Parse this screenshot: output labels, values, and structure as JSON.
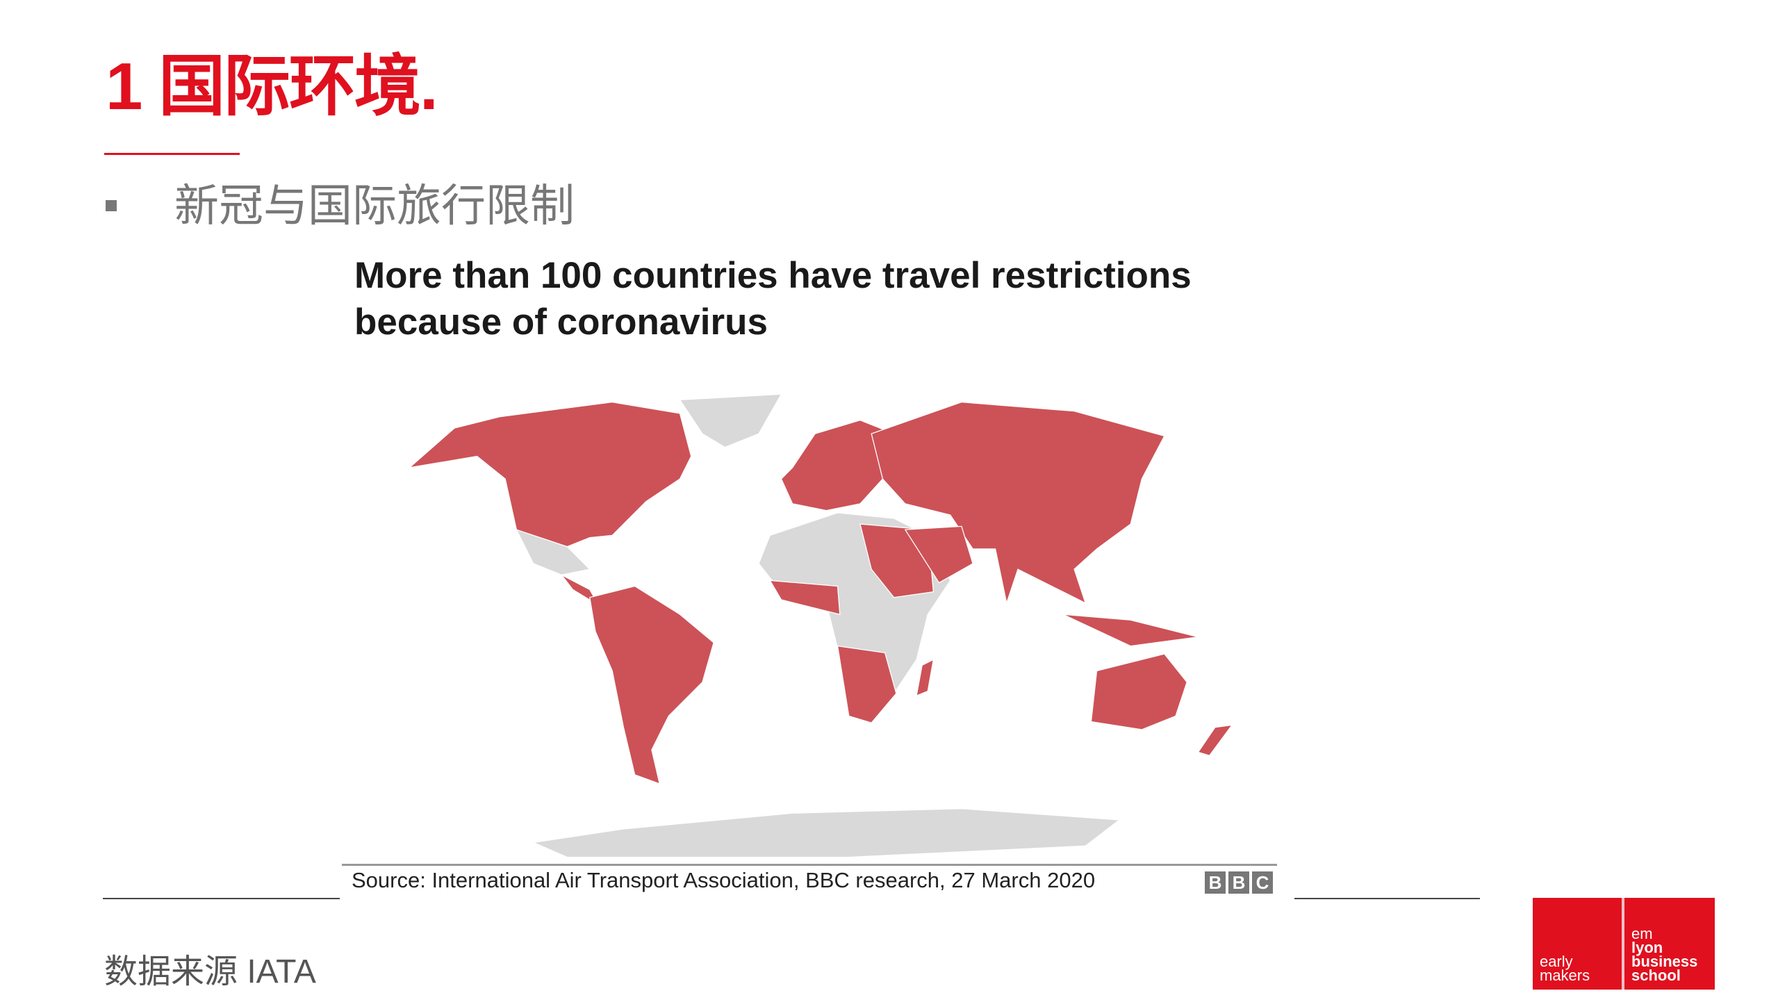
{
  "slide": {
    "title": "1 国际环境.",
    "bullet": "新冠与国际旅行限制",
    "footer_note": "数据来源 IATA"
  },
  "figure": {
    "title_line1": "More than 100 countries have travel restrictions",
    "title_line2": "because of coronavirus",
    "source": "Source:  International Air Transport Association, BBC research, 27 March 2020",
    "bbc_logo": [
      "B",
      "B",
      "C"
    ],
    "colors": {
      "restricted": "#cc5257",
      "other": "#d9d9d9"
    }
  },
  "logo": {
    "left": [
      "early",
      "makers"
    ],
    "right": [
      "em",
      "lyon",
      "business",
      "school"
    ],
    "color": "#e0101f"
  }
}
